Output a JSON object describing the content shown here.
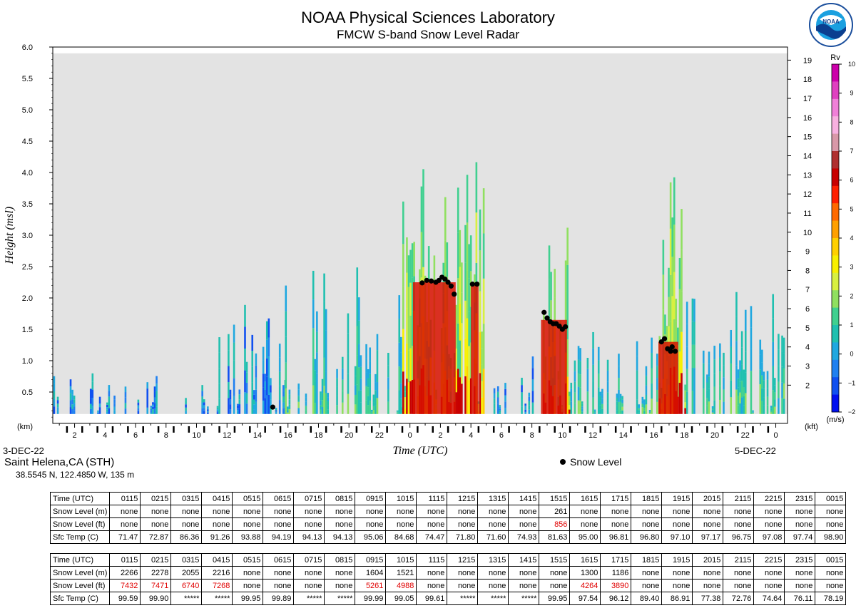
{
  "header": {
    "title": "NOAA Physical Sciences Laboratory",
    "subtitle": "FMCW S-band Snow Level Radar",
    "logo_text": "NOAA"
  },
  "site": {
    "name": "Saint Helena,CA (STH)",
    "coords": "38.5545 N, 122.4850 W, 135 m"
  },
  "legend": {
    "snow_level": "Snow Level"
  },
  "colorbar": {
    "title": "Rv",
    "unit": "(m/s)",
    "ticks": [
      "10",
      "9",
      "8",
      "7",
      "6",
      "5",
      "4",
      "3",
      "2",
      "1",
      "0",
      "−1",
      "−2"
    ],
    "colors": [
      "#cc00aa",
      "#e040c0",
      "#f080d8",
      "#f8b0e0",
      "#d898a8",
      "#b03030",
      "#c80000",
      "#ff2000",
      "#ff6a00",
      "#ffa000",
      "#ffd000",
      "#f8f000",
      "#d8f040",
      "#90e060",
      "#40d090",
      "#20c0b0",
      "#20a8e0",
      "#2080f0",
      "#1050f0",
      "#0010f0"
    ]
  },
  "chart_data": {
    "type": "heatmap",
    "xlabel": "Time (UTC)",
    "ylabel": "Height (msl)",
    "ylabel_right_unit": "(kft)",
    "ylabel_left_unit": "(km)",
    "date_start": "3-DEC-22",
    "date_end": "5-DEC-22",
    "ylim": [
      0,
      6.0
    ],
    "y_ticks": [
      "6.0",
      "5.5",
      "5.0",
      "4.5",
      "4.0",
      "3.5",
      "3.0",
      "2.5",
      "2.0",
      "1.5",
      "1.0",
      "0.5"
    ],
    "y_tick_values": [
      6.0,
      5.5,
      5.0,
      4.5,
      4.0,
      3.5,
      3.0,
      2.5,
      2.0,
      1.5,
      1.0,
      0.5
    ],
    "kft_ticks": [
      "19",
      "18",
      "17",
      "16",
      "15",
      "14",
      "13",
      "12",
      "11",
      "10",
      "9",
      "8",
      "7",
      "6",
      "5",
      "4",
      "3",
      "2"
    ],
    "x_tick_labels": [
      "2",
      "4",
      "6",
      "8",
      "10",
      "12",
      "14",
      "16",
      "18",
      "20",
      "22",
      "0",
      "2",
      "4",
      "6",
      "8",
      "10",
      "12",
      "14",
      "16",
      "18",
      "20",
      "22",
      "0"
    ],
    "snow_level_points": [
      {
        "t": 15.0,
        "h": 0.26
      },
      {
        "t": 24.8,
        "h": 2.24
      },
      {
        "t": 25.1,
        "h": 2.28
      },
      {
        "t": 25.4,
        "h": 2.27
      },
      {
        "t": 25.7,
        "h": 2.25
      },
      {
        "t": 25.9,
        "h": 2.28
      },
      {
        "t": 26.1,
        "h": 2.33
      },
      {
        "t": 26.3,
        "h": 2.3
      },
      {
        "t": 26.5,
        "h": 2.25
      },
      {
        "t": 26.7,
        "h": 2.19
      },
      {
        "t": 26.9,
        "h": 2.06
      },
      {
        "t": 28.1,
        "h": 2.22
      },
      {
        "t": 28.4,
        "h": 2.22
      },
      {
        "t": 32.8,
        "h": 1.77
      },
      {
        "t": 33.0,
        "h": 1.68
      },
      {
        "t": 33.2,
        "h": 1.62
      },
      {
        "t": 33.4,
        "h": 1.59
      },
      {
        "t": 33.6,
        "h": 1.59
      },
      {
        "t": 33.8,
        "h": 1.55
      },
      {
        "t": 34.0,
        "h": 1.5
      },
      {
        "t": 34.2,
        "h": 1.54
      },
      {
        "t": 40.5,
        "h": 1.3
      },
      {
        "t": 40.7,
        "h": 1.35
      },
      {
        "t": 40.9,
        "h": 1.19
      },
      {
        "t": 41.1,
        "h": 1.15
      },
      {
        "t": 41.2,
        "h": 1.22
      },
      {
        "t": 41.4,
        "h": 1.15
      }
    ]
  },
  "table1": {
    "rows": [
      {
        "label": "Time (UTC)",
        "values": [
          "0115",
          "0215",
          "0315",
          "0415",
          "0515",
          "0615",
          "0715",
          "0815",
          "0915",
          "1015",
          "1115",
          "1215",
          "1315",
          "1415",
          "1515",
          "1615",
          "1715",
          "1815",
          "1915",
          "2015",
          "2115",
          "2215",
          "2315",
          "0015"
        ]
      },
      {
        "label": "Snow Level (m)",
        "values": [
          "none",
          "none",
          "none",
          "none",
          "none",
          "none",
          "none",
          "none",
          "none",
          "none",
          "none",
          "none",
          "none",
          "none",
          "261",
          "none",
          "none",
          "none",
          "none",
          "none",
          "none",
          "none",
          "none",
          "none"
        ]
      },
      {
        "label": "Snow Level (ft)",
        "values": [
          "none",
          "none",
          "none",
          "none",
          "none",
          "none",
          "none",
          "none",
          "none",
          "none",
          "none",
          "none",
          "none",
          "none",
          "856",
          "none",
          "none",
          "none",
          "none",
          "none",
          "none",
          "none",
          "none",
          "none"
        ]
      },
      {
        "label": "Sfc Temp (C)",
        "values": [
          "71.47",
          "72.87",
          "86.36",
          "91.26",
          "93.88",
          "94.19",
          "94.13",
          "94.13",
          "95.06",
          "84.68",
          "74.47",
          "71.80",
          "71.60",
          "74.93",
          "81.63",
          "95.00",
          "96.81",
          "96.80",
          "97.10",
          "97.17",
          "96.75",
          "97.08",
          "97.74",
          "98.90"
        ]
      }
    ]
  },
  "table2": {
    "rows": [
      {
        "label": "Time (UTC)",
        "values": [
          "0115",
          "0215",
          "0315",
          "0415",
          "0515",
          "0615",
          "0715",
          "0815",
          "0915",
          "1015",
          "1115",
          "1215",
          "1315",
          "1415",
          "1515",
          "1615",
          "1715",
          "1815",
          "1915",
          "2015",
          "2115",
          "2215",
          "2315",
          "0015"
        ]
      },
      {
        "label": "Snow Level (m)",
        "values": [
          "2266",
          "2278",
          "2055",
          "2216",
          "none",
          "none",
          "none",
          "none",
          "1604",
          "1521",
          "none",
          "none",
          "none",
          "none",
          "none",
          "1300",
          "1186",
          "none",
          "none",
          "none",
          "none",
          "none",
          "none",
          "none"
        ]
      },
      {
        "label": "Snow Level (ft)",
        "values": [
          "7432",
          "7471",
          "6740",
          "7268",
          "none",
          "none",
          "none",
          "none",
          "5261",
          "4988",
          "none",
          "none",
          "none",
          "none",
          "none",
          "4264",
          "3890",
          "none",
          "none",
          "none",
          "none",
          "none",
          "none",
          "none"
        ]
      },
      {
        "label": "Sfc Temp (C)",
        "values": [
          "99.59",
          "99.90",
          "*****",
          "*****",
          "99.95",
          "99.89",
          "*****",
          "*****",
          "99.99",
          "99.05",
          "99.61",
          "*****",
          "*****",
          "*****",
          "99.95",
          "97.54",
          "96.12",
          "89.40",
          "86.91",
          "77.38",
          "72.76",
          "74.64",
          "76.11",
          "78.19"
        ]
      }
    ]
  }
}
